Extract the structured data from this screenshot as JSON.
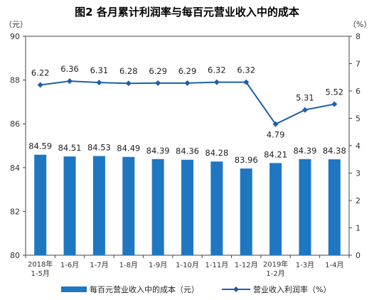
{
  "chart_data": {
    "type": "bar",
    "title": "图2  各月累计利润率与每百元营业收入中的成本",
    "left_unit": "（元）",
    "right_unit": "（%）",
    "categories": [
      [
        "2018年",
        "1-5月"
      ],
      [
        "1-6月"
      ],
      [
        "1-7月"
      ],
      [
        "1-8月"
      ],
      [
        "1-9月"
      ],
      [
        "1-10月"
      ],
      [
        "1-11月"
      ],
      [
        "1-12月"
      ],
      [
        "2019年",
        "1-2月"
      ],
      [
        "1-3月"
      ],
      [
        "1-4月"
      ]
    ],
    "left_axis": {
      "min": 80,
      "max": 90,
      "ticks": [
        "80",
        "82",
        "84",
        "86",
        "88",
        "90"
      ]
    },
    "right_axis": {
      "min": 0,
      "max": 8,
      "ticks": [
        "0",
        "1",
        "2",
        "3",
        "4",
        "5",
        "6",
        "7",
        "8"
      ]
    },
    "series": [
      {
        "name": "每百元营业收入中的成本（元）",
        "type": "bar",
        "axis": "left",
        "color": "#1f77c2",
        "values": [
          84.59,
          84.51,
          84.53,
          84.49,
          84.39,
          84.36,
          84.28,
          83.96,
          84.21,
          84.39,
          84.38
        ],
        "labels": [
          "84.59",
          "84.51",
          "84.53",
          "84.49",
          "84.39",
          "84.36",
          "84.28",
          "83.96",
          "84.21",
          "84.39",
          "84.38"
        ]
      },
      {
        "name": "营业收入利润率（%）",
        "type": "line",
        "axis": "right",
        "color": "#1f5fa8",
        "values": [
          6.22,
          6.36,
          6.31,
          6.28,
          6.29,
          6.29,
          6.32,
          6.32,
          4.79,
          5.31,
          5.52
        ],
        "labels": [
          "6.22",
          "6.36",
          "6.31",
          "6.28",
          "6.29",
          "6.29",
          "6.32",
          "6.32",
          "4.79",
          "5.31",
          "5.52"
        ]
      }
    ],
    "legend_position": "bottom",
    "grid": false
  }
}
